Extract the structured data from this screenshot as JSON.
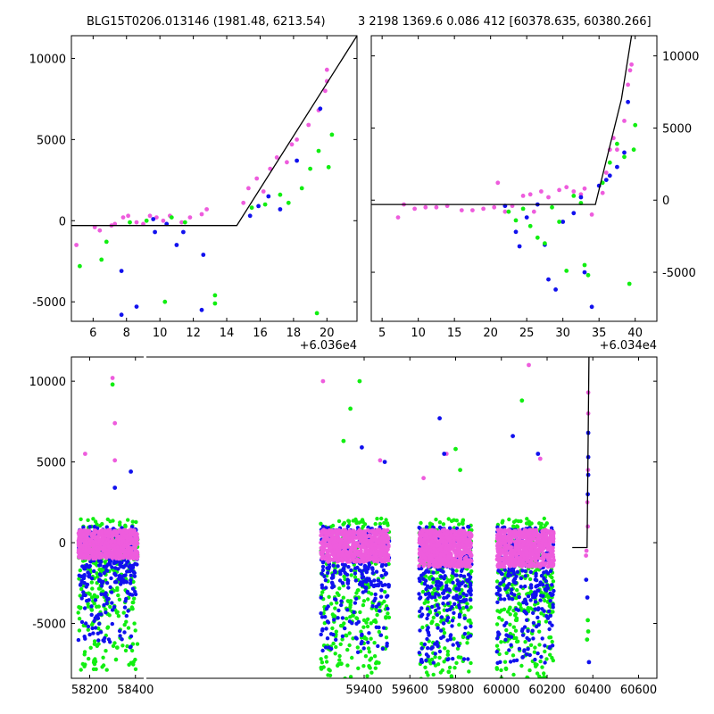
{
  "chart_data": [
    {
      "type": "scatter",
      "panel": "top-left",
      "title": "BLG15T0206.013146 (1981.48, 6213.54)",
      "x_offset_label": "+6.036e4",
      "xlim": [
        4.7,
        21.8
      ],
      "ylim": [
        -6200,
        11400
      ],
      "xticks": [
        6,
        8,
        10,
        12,
        14,
        16,
        18,
        20
      ],
      "yticks": [
        -5000,
        0,
        5000,
        10000
      ],
      "y_axis_side": "left",
      "grid": false,
      "model_line": [
        [
          4.7,
          -300
        ],
        [
          14.6,
          -300
        ],
        [
          21.8,
          11400
        ]
      ],
      "series": [
        {
          "color": "#ee5cdd",
          "points": [
            [
              5.0,
              -1500
            ],
            [
              6.1,
              -400
            ],
            [
              6.4,
              -600
            ],
            [
              7.1,
              -300
            ],
            [
              7.3,
              -200
            ],
            [
              7.8,
              200
            ],
            [
              8.1,
              300
            ],
            [
              8.6,
              -100
            ],
            [
              9.0,
              -200
            ],
            [
              9.4,
              300
            ],
            [
              9.8,
              200
            ],
            [
              10.2,
              0
            ],
            [
              10.6,
              300
            ],
            [
              11.3,
              -100
            ],
            [
              11.8,
              200
            ],
            [
              12.5,
              400
            ],
            [
              12.8,
              700
            ],
            [
              15.0,
              1100
            ],
            [
              15.3,
              2000
            ],
            [
              15.8,
              2600
            ],
            [
              16.2,
              1800
            ],
            [
              16.6,
              3200
            ],
            [
              17.0,
              3900
            ],
            [
              17.6,
              3600
            ],
            [
              17.9,
              4700
            ],
            [
              18.2,
              5000
            ],
            [
              18.9,
              5900
            ],
            [
              19.5,
              6800
            ],
            [
              19.9,
              8000
            ],
            [
              20.0,
              8600
            ],
            [
              20.0,
              9300
            ]
          ]
        },
        {
          "color": "#1111ee",
          "points": [
            [
              7.7,
              -3100
            ],
            [
              7.7,
              -5800
            ],
            [
              8.6,
              -5300
            ],
            [
              9.6,
              100
            ],
            [
              9.7,
              -700
            ],
            [
              10.4,
              -200
            ],
            [
              11.0,
              -1500
            ],
            [
              11.4,
              -700
            ],
            [
              12.6,
              -2100
            ],
            [
              12.5,
              -5500
            ],
            [
              15.4,
              300
            ],
            [
              15.9,
              900
            ],
            [
              16.5,
              1500
            ],
            [
              17.2,
              700
            ],
            [
              18.2,
              3700
            ],
            [
              19.6,
              6900
            ]
          ]
        },
        {
          "color": "#11ee11",
          "points": [
            [
              5.2,
              -2800
            ],
            [
              6.5,
              -2400
            ],
            [
              6.8,
              -1300
            ],
            [
              8.2,
              -100
            ],
            [
              9.2,
              0
            ],
            [
              10.3,
              -5000
            ],
            [
              10.7,
              200
            ],
            [
              11.5,
              -100
            ],
            [
              13.3,
              -4600
            ],
            [
              13.3,
              -5100
            ],
            [
              15.5,
              800
            ],
            [
              16.3,
              1000
            ],
            [
              17.2,
              1600
            ],
            [
              17.7,
              1100
            ],
            [
              18.5,
              2000
            ],
            [
              19.0,
              3200
            ],
            [
              19.4,
              -5700
            ],
            [
              19.5,
              4300
            ],
            [
              20.1,
              3300
            ],
            [
              20.3,
              5300
            ]
          ]
        }
      ]
    },
    {
      "type": "scatter",
      "panel": "top-right",
      "title": "3 2198 1369.6 0.086 412 [60378.635, 60380.266]",
      "x_offset_label": "+6.034e4",
      "xlim": [
        3.5,
        43.0
      ],
      "ylim": [
        -8400,
        11400
      ],
      "xticks": [
        5,
        10,
        15,
        20,
        25,
        30,
        35,
        40
      ],
      "yticks": [
        -5000,
        0,
        5000,
        10000
      ],
      "y_axis_side": "right",
      "grid": false,
      "model_line": [
        [
          3.5,
          -300
        ],
        [
          34.5,
          -300
        ],
        [
          38.1,
          7000
        ],
        [
          39.5,
          11400
        ]
      ],
      "series": [
        {
          "color": "#ee5cdd",
          "points": [
            [
              7.2,
              -1200
            ],
            [
              8.0,
              -300
            ],
            [
              9.5,
              -600
            ],
            [
              11.0,
              -500
            ],
            [
              12.5,
              -500
            ],
            [
              14.0,
              -400
            ],
            [
              16.0,
              -700
            ],
            [
              17.5,
              -700
            ],
            [
              19.0,
              -600
            ],
            [
              20.5,
              -500
            ],
            [
              21.0,
              1200
            ],
            [
              22.0,
              -800
            ],
            [
              23.0,
              -400
            ],
            [
              24.5,
              300
            ],
            [
              25.5,
              400
            ],
            [
              26.0,
              -800
            ],
            [
              27.0,
              600
            ],
            [
              28.0,
              200
            ],
            [
              29.5,
              700
            ],
            [
              30.5,
              900
            ],
            [
              31.5,
              600
            ],
            [
              32.5,
              400
            ],
            [
              33.0,
              800
            ],
            [
              34.0,
              -1000
            ],
            [
              35.5,
              500
            ],
            [
              36.0,
              1900
            ],
            [
              36.5,
              3500
            ],
            [
              37.0,
              4300
            ],
            [
              37.5,
              3500
            ],
            [
              38.5,
              5500
            ],
            [
              39.0,
              8000
            ],
            [
              39.3,
              9000
            ],
            [
              39.5,
              9400
            ]
          ]
        },
        {
          "color": "#1111ee",
          "points": [
            [
              22.0,
              -400
            ],
            [
              23.5,
              -2200
            ],
            [
              24.0,
              -3200
            ],
            [
              25.0,
              -1200
            ],
            [
              26.5,
              -300
            ],
            [
              27.5,
              -3100
            ],
            [
              28.0,
              -5500
            ],
            [
              29.0,
              -6200
            ],
            [
              30.0,
              -1500
            ],
            [
              31.5,
              -900
            ],
            [
              32.5,
              200
            ],
            [
              33.0,
              -5000
            ],
            [
              34.0,
              -7400
            ],
            [
              35.0,
              1000
            ],
            [
              36.0,
              1400
            ],
            [
              36.5,
              1700
            ],
            [
              37.5,
              2300
            ],
            [
              38.5,
              3300
            ],
            [
              39.0,
              6800
            ]
          ]
        },
        {
          "color": "#11ee11",
          "points": [
            [
              22.5,
              -800
            ],
            [
              23.5,
              -1400
            ],
            [
              24.5,
              -600
            ],
            [
              25.5,
              -1800
            ],
            [
              26.5,
              -2600
            ],
            [
              27.5,
              -3000
            ],
            [
              28.5,
              -500
            ],
            [
              29.5,
              -1500
            ],
            [
              30.5,
              -4900
            ],
            [
              31.5,
              300
            ],
            [
              32.5,
              -200
            ],
            [
              33.0,
              -4500
            ],
            [
              33.5,
              -5200
            ],
            [
              35.5,
              1200
            ],
            [
              36.5,
              2600
            ],
            [
              37.5,
              3900
            ],
            [
              38.5,
              3000
            ],
            [
              39.2,
              -5800
            ],
            [
              39.8,
              3500
            ],
            [
              40.0,
              5200
            ]
          ]
        }
      ]
    },
    {
      "type": "scatter",
      "panel": "bottom",
      "title": "",
      "xlim": [
        58120,
        60680
      ],
      "ylim": [
        -8400,
        11500
      ],
      "xticks": [
        58200,
        58400,
        59400,
        59600,
        59800,
        60000,
        60200,
        60400,
        60600
      ],
      "yticks": [
        -5000,
        0,
        5000,
        10000
      ],
      "y_axis_side": "left",
      "grid": false,
      "model_line": [
        [
          60310,
          -300
        ],
        [
          60375,
          -300
        ],
        [
          60383,
          11500
        ]
      ],
      "seasons": [
        {
          "x_range": [
            58150,
            58410
          ],
          "blue": [
            -2500,
            1000
          ],
          "pink": [
            -1000,
            800
          ],
          "green": [
            -4000,
            1500
          ]
        },
        {
          "x_range": [
            59210,
            59510
          ],
          "blue": [
            -2800,
            1000
          ],
          "pink": [
            -1200,
            800
          ],
          "green": [
            -5000,
            1500
          ]
        },
        {
          "x_range": [
            59640,
            59870
          ],
          "blue": [
            -3500,
            1000
          ],
          "pink": [
            -1500,
            800
          ],
          "green": [
            -5000,
            1500
          ]
        },
        {
          "x_range": [
            59980,
            60230
          ],
          "blue": [
            -3500,
            1000
          ],
          "pink": [
            -1500,
            800
          ],
          "green": [
            -4500,
            1500
          ]
        }
      ],
      "series": [
        {
          "color": "#11ee11",
          "points": [
            [
              58300,
              9800
            ],
            [
              58320,
              -6500
            ],
            [
              59380,
              10000
            ],
            [
              59340,
              8300
            ],
            [
              59310,
              6300
            ],
            [
              59800,
              5800
            ],
            [
              59820,
              4500
            ],
            [
              60090,
              8800
            ],
            [
              60020,
              -7800
            ],
            [
              59770,
              -8000
            ],
            [
              58220,
              -7300
            ],
            [
              59300,
              -7500
            ],
            [
              60380,
              -5500
            ],
            [
              60375,
              -6000
            ],
            [
              60378,
              -4800
            ]
          ]
        },
        {
          "color": "#ee5cdd",
          "points": [
            [
              58300,
              10200
            ],
            [
              58310,
              7400
            ],
            [
              58310,
              5100
            ],
            [
              58180,
              5500
            ],
            [
              59220,
              10000
            ],
            [
              59470,
              5100
            ],
            [
              59660,
              4000
            ],
            [
              59760,
              5500
            ],
            [
              60120,
              11000
            ],
            [
              60170,
              5200
            ],
            [
              60380,
              8000
            ],
            [
              60380,
              9300
            ],
            [
              60378,
              1000
            ],
            [
              60372,
              -500
            ],
            [
              60370,
              -800
            ],
            [
              60376,
              2500
            ],
            [
              60379,
              4500
            ]
          ]
        },
        {
          "color": "#1111ee",
          "points": [
            [
              58380,
              4400
            ],
            [
              58310,
              3400
            ],
            [
              59490,
              5000
            ],
            [
              59390,
              5900
            ],
            [
              59730,
              7700
            ],
            [
              59750,
              5500
            ],
            [
              60050,
              6600
            ],
            [
              60160,
              5500
            ],
            [
              60380,
              6800
            ],
            [
              60380,
              4200
            ],
            [
              60378,
              3000
            ],
            [
              60383,
              -7400
            ],
            [
              60371,
              -2300
            ],
            [
              60376,
              -3400
            ],
            [
              60380,
              5300
            ]
          ]
        }
      ]
    }
  ]
}
